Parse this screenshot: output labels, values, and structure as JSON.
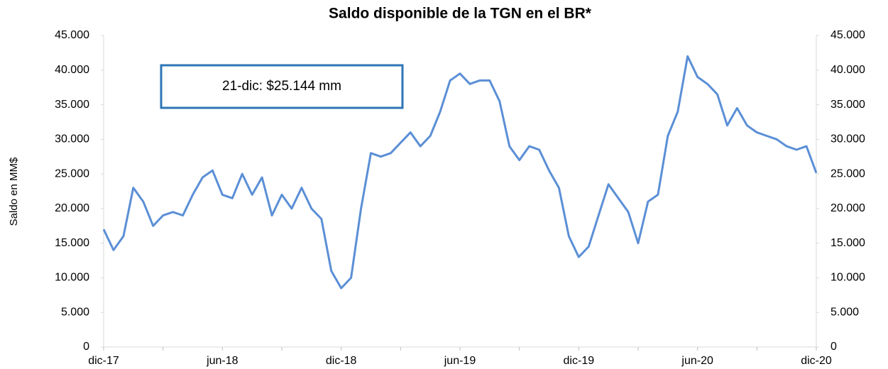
{
  "chart_data": {
    "type": "line",
    "title": "Saldo disponible de la TGN en el BR*",
    "y_label": "Saldo en MM$",
    "annotation": "21-dic: $25.144 mm",
    "categories": [
      "dic-17",
      null,
      null,
      null,
      null,
      null,
      null,
      null,
      null,
      null,
      null,
      null,
      "jun-18",
      null,
      null,
      null,
      null,
      null,
      null,
      null,
      null,
      null,
      null,
      null,
      "dic-18",
      null,
      null,
      null,
      null,
      null,
      null,
      null,
      null,
      null,
      null,
      null,
      "jun-19",
      null,
      null,
      null,
      null,
      null,
      null,
      null,
      null,
      null,
      null,
      null,
      "dic-19",
      null,
      null,
      null,
      null,
      null,
      null,
      null,
      null,
      null,
      null,
      null,
      "jun-20",
      null,
      null,
      null,
      null,
      null,
      null,
      null,
      null,
      null,
      null,
      null,
      "dic-20"
    ],
    "series": [
      {
        "name": "Saldo",
        "color": "#5b8fd6",
        "values": [
          17000,
          14000,
          16000,
          23000,
          21000,
          17500,
          19000,
          19500,
          19000,
          22000,
          24500,
          25500,
          22000,
          21500,
          25000,
          22000,
          24500,
          19000,
          22000,
          20000,
          23000,
          20000,
          18500,
          11000,
          8500,
          10000,
          20000,
          28000,
          27500,
          28000,
          29500,
          31000,
          29000,
          30500,
          34000,
          38500,
          39500,
          38000,
          38500,
          38500,
          35500,
          29000,
          27000,
          29000,
          28500,
          25500,
          23000,
          16000,
          13000,
          14500,
          19000,
          23500,
          21500,
          19500,
          15000,
          21000,
          22000,
          30500,
          34000,
          42000,
          39000,
          38000,
          36500,
          32000,
          34500,
          32000,
          31000,
          30500,
          30000,
          29000,
          28500,
          29000,
          25144
        ]
      }
    ],
    "ylim": [
      0,
      45000
    ],
    "yticks": [
      0,
      {
        "value": 5000,
        "label": "5.000"
      },
      {
        "value": 10000,
        "label": "10.000"
      },
      {
        "value": 15000,
        "label": "15.000"
      },
      {
        "value": 20000,
        "label": "20.000"
      },
      {
        "value": 25000,
        "label": "25.000"
      },
      {
        "value": 30000,
        "label": "30.000"
      },
      {
        "value": 35000,
        "label": "35.000"
      },
      {
        "value": 40000,
        "label": "40.000"
      },
      {
        "value": 45000,
        "label": "45.000"
      }
    ],
    "y2lim": [
      0,
      45000
    ],
    "y2ticks": [
      0,
      {
        "value": 5000,
        "label": "5.000"
      },
      {
        "value": 10000,
        "label": "10.000"
      },
      {
        "value": 15000,
        "label": "15.000"
      },
      {
        "value": 20000,
        "label": "20.000"
      },
      {
        "value": 25000,
        "label": "25.000"
      },
      {
        "value": 30000,
        "label": "30.000"
      },
      {
        "value": 35000,
        "label": "35.000"
      },
      {
        "value": 40000,
        "label": "40.000"
      },
      {
        "value": 45000,
        "label": "45.000"
      }
    ]
  }
}
